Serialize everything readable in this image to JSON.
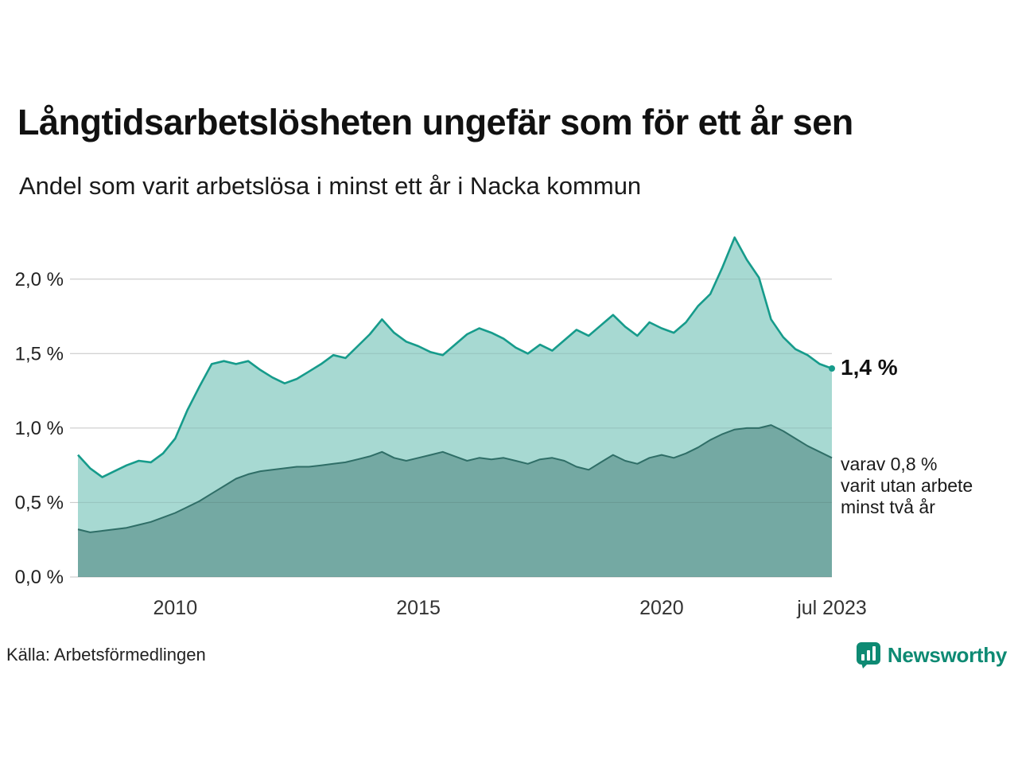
{
  "title": "Långtidsarbetslösheten ungefär som för ett år sen",
  "subtitle": "Andel som varit arbetslösa i minst ett år i Nacka kommun",
  "source": "Källa: Arbetsförmedlingen",
  "logo": {
    "text": "Newsworthy"
  },
  "annotations": {
    "latest_total": "1,4 %",
    "secondary": [
      "varav 0,8 %",
      "varit utan arbete",
      "minst två år"
    ]
  },
  "colors": {
    "accent_teal": "#169b8b",
    "area_light": "#a7d9d2",
    "area_dark": "#74a9a3",
    "line_dark": "#2f6e67",
    "grid": "#cfcfcf",
    "axis_text": "#222222",
    "brand": "#0e8a73"
  },
  "chart_data": {
    "type": "area",
    "title": "Långtidsarbetslösheten ungefär som för ett år sen",
    "xlabel": "",
    "ylabel": "",
    "grid": true,
    "legend": "none",
    "ylim": [
      0,
      2.33
    ],
    "yticks": [
      {
        "v": 0.0,
        "label": "0,0 %"
      },
      {
        "v": 0.5,
        "label": "0,5 %"
      },
      {
        "v": 1.0,
        "label": "1,0 %"
      },
      {
        "v": 1.5,
        "label": "1,5 %"
      },
      {
        "v": 2.0,
        "label": "2,0 %"
      }
    ],
    "xticks": [
      {
        "v": 2010,
        "label": "2010"
      },
      {
        "v": 2015,
        "label": "2015"
      },
      {
        "v": 2020,
        "label": "2020"
      },
      {
        "v": 2023.5,
        "label": "jul 2023"
      }
    ],
    "x": [
      2008.0,
      2008.25,
      2008.5,
      2008.75,
      2009.0,
      2009.25,
      2009.5,
      2009.75,
      2010.0,
      2010.25,
      2010.5,
      2010.75,
      2011.0,
      2011.25,
      2011.5,
      2011.75,
      2012.0,
      2012.25,
      2012.5,
      2012.75,
      2013.0,
      2013.25,
      2013.5,
      2013.75,
      2014.0,
      2014.25,
      2014.5,
      2014.75,
      2015.0,
      2015.25,
      2015.5,
      2015.75,
      2016.0,
      2016.25,
      2016.5,
      2016.75,
      2017.0,
      2017.25,
      2017.5,
      2017.75,
      2018.0,
      2018.25,
      2018.5,
      2018.75,
      2019.0,
      2019.25,
      2019.5,
      2019.75,
      2020.0,
      2020.25,
      2020.5,
      2020.75,
      2021.0,
      2021.25,
      2021.5,
      2021.75,
      2022.0,
      2022.25,
      2022.5,
      2022.75,
      2023.0,
      2023.25,
      2023.5
    ],
    "series": [
      {
        "name": "arbetslösa minst ett år",
        "latest_label": "1,4 %",
        "values": [
          0.82,
          0.73,
          0.67,
          0.71,
          0.75,
          0.78,
          0.77,
          0.83,
          0.93,
          1.12,
          1.28,
          1.43,
          1.45,
          1.43,
          1.45,
          1.39,
          1.34,
          1.3,
          1.33,
          1.38,
          1.43,
          1.49,
          1.47,
          1.55,
          1.63,
          1.73,
          1.64,
          1.58,
          1.55,
          1.51,
          1.49,
          1.56,
          1.63,
          1.67,
          1.64,
          1.6,
          1.54,
          1.5,
          1.56,
          1.52,
          1.59,
          1.66,
          1.62,
          1.69,
          1.76,
          1.68,
          1.62,
          1.71,
          1.67,
          1.64,
          1.71,
          1.82,
          1.9,
          2.08,
          2.28,
          2.13,
          2.01,
          1.73,
          1.61,
          1.53,
          1.49,
          1.43,
          1.4
        ]
      },
      {
        "name": "utan arbete minst två år",
        "latest_label": "0,8 %",
        "values": [
          0.32,
          0.3,
          0.31,
          0.32,
          0.33,
          0.35,
          0.37,
          0.4,
          0.43,
          0.47,
          0.51,
          0.56,
          0.61,
          0.66,
          0.69,
          0.71,
          0.72,
          0.73,
          0.74,
          0.74,
          0.75,
          0.76,
          0.77,
          0.79,
          0.81,
          0.84,
          0.8,
          0.78,
          0.8,
          0.82,
          0.84,
          0.81,
          0.78,
          0.8,
          0.79,
          0.8,
          0.78,
          0.76,
          0.79,
          0.8,
          0.78,
          0.74,
          0.72,
          0.77,
          0.82,
          0.78,
          0.76,
          0.8,
          0.82,
          0.8,
          0.83,
          0.87,
          0.92,
          0.96,
          0.99,
          1.0,
          1.0,
          1.02,
          0.98,
          0.93,
          0.88,
          0.84,
          0.8
        ]
      }
    ]
  }
}
